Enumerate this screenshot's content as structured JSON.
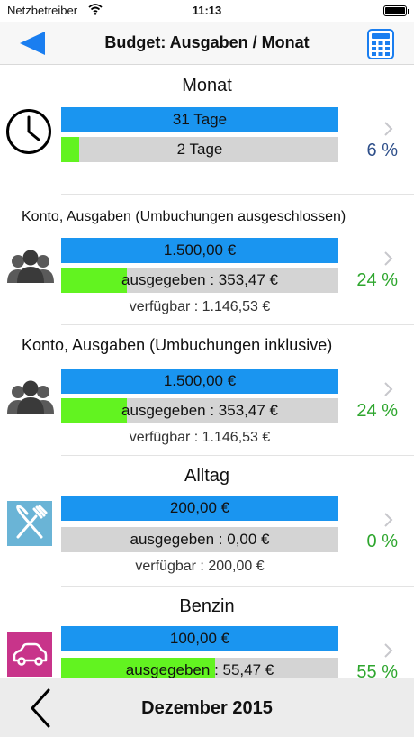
{
  "status": {
    "carrier": "Netzbetreiber",
    "time": "11:13"
  },
  "navbar": {
    "title": "Budget: Ausgaben / Monat",
    "back_icon": "back-arrow-icon",
    "calculator_icon": "calculator-icon"
  },
  "colors": {
    "accent_blue": "#1a95f0",
    "progress_green": "#62f320",
    "bar_gray": "#d4d4d4",
    "pct_green": "#2ea62e",
    "pct_blue": "#2e4f8a"
  },
  "sections": [
    {
      "title": "Monat",
      "icon": "clock-icon",
      "total": "31 Tage",
      "progress_label": "2 Tage",
      "progress_fraction": 0.065,
      "percent": "6 %"
    },
    {
      "title": "Konto, Ausgaben (Umbuchungen ausgeschlossen)",
      "icon": "group-icon",
      "total": "1.500,00 €",
      "progress_label": "ausgegeben : 353,47 €",
      "progress_fraction": 0.236,
      "available": "verfügbar : 1.146,53 €",
      "percent": "24 %"
    },
    {
      "title": "Konto, Ausgaben (Umbuchungen inklusive)",
      "icon": "group-icon",
      "total": "1.500,00 €",
      "progress_label": "ausgegeben : 353,47 €",
      "progress_fraction": 0.236,
      "available": "verfügbar : 1.146,53 €",
      "percent": "24 %"
    },
    {
      "title": "Alltag",
      "icon": "fork-knife-icon",
      "total": "200,00 €",
      "progress_label": "ausgegeben : 0,00 €",
      "progress_fraction": 0.0,
      "available": "verfügbar : 200,00 €",
      "percent": "0 %"
    },
    {
      "title": "Benzin",
      "icon": "car-icon",
      "total": "100,00 €",
      "progress_label": "ausgegeben : 55,47 €",
      "progress_fraction": 0.555,
      "percent": "55 %"
    }
  ],
  "footer": {
    "label": "Dezember 2015",
    "prev_icon": "chevron-left-icon"
  }
}
